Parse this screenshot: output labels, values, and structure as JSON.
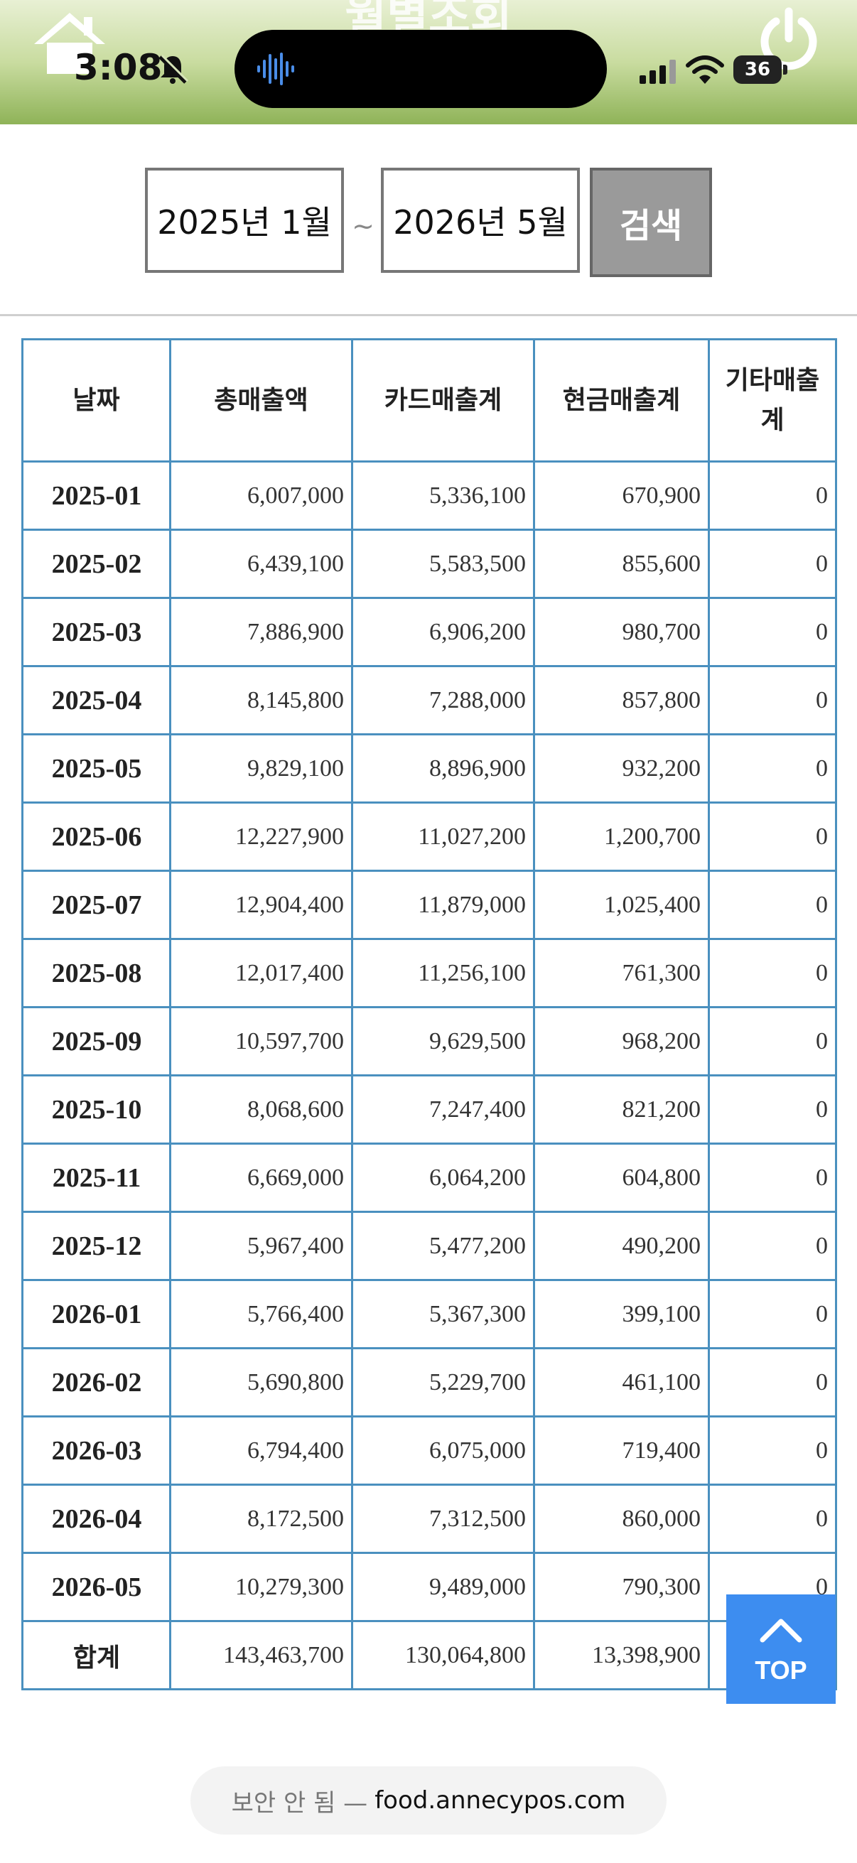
{
  "status_bar": {
    "time": "3:08",
    "battery": "36"
  },
  "header": {
    "title": "월별조회",
    "icons": [
      "home-icon",
      "power-icon"
    ]
  },
  "search": {
    "from": "2025년 1월",
    "separator": "~",
    "to": "2026년 5월",
    "button": "검색"
  },
  "table": {
    "headers": [
      "날짜",
      "총매출액",
      "카드매출계",
      "현금매출계",
      "기타매출계"
    ],
    "rows": [
      [
        "2025-01",
        "6,007,000",
        "5,336,100",
        "670,900",
        "0"
      ],
      [
        "2025-02",
        "6,439,100",
        "5,583,500",
        "855,600",
        "0"
      ],
      [
        "2025-03",
        "7,886,900",
        "6,906,200",
        "980,700",
        "0"
      ],
      [
        "2025-04",
        "8,145,800",
        "7,288,000",
        "857,800",
        "0"
      ],
      [
        "2025-05",
        "9,829,100",
        "8,896,900",
        "932,200",
        "0"
      ],
      [
        "2025-06",
        "12,227,900",
        "11,027,200",
        "1,200,700",
        "0"
      ],
      [
        "2025-07",
        "12,904,400",
        "11,879,000",
        "1,025,400",
        "0"
      ],
      [
        "2025-08",
        "12,017,400",
        "11,256,100",
        "761,300",
        "0"
      ],
      [
        "2025-09",
        "10,597,700",
        "9,629,500",
        "968,200",
        "0"
      ],
      [
        "2025-10",
        "8,068,600",
        "7,247,400",
        "821,200",
        "0"
      ],
      [
        "2025-11",
        "6,669,000",
        "6,064,200",
        "604,800",
        "0"
      ],
      [
        "2025-12",
        "5,967,400",
        "5,477,200",
        "490,200",
        "0"
      ],
      [
        "2026-01",
        "5,766,400",
        "5,367,300",
        "399,100",
        "0"
      ],
      [
        "2026-02",
        "5,690,800",
        "5,229,700",
        "461,100",
        "0"
      ],
      [
        "2026-03",
        "6,794,400",
        "6,075,000",
        "719,400",
        "0"
      ],
      [
        "2026-04",
        "8,172,500",
        "7,312,500",
        "860,000",
        "0"
      ],
      [
        "2026-05",
        "10,279,300",
        "9,489,000",
        "790,300",
        "0"
      ]
    ],
    "total": [
      "합계",
      "143,463,700",
      "130,064,800",
      "13,398,900",
      ""
    ]
  },
  "top_button": {
    "label": "TOP"
  },
  "url_bar": {
    "security": "보안 안 됨 —",
    "domain": "food.annecypos.com"
  }
}
